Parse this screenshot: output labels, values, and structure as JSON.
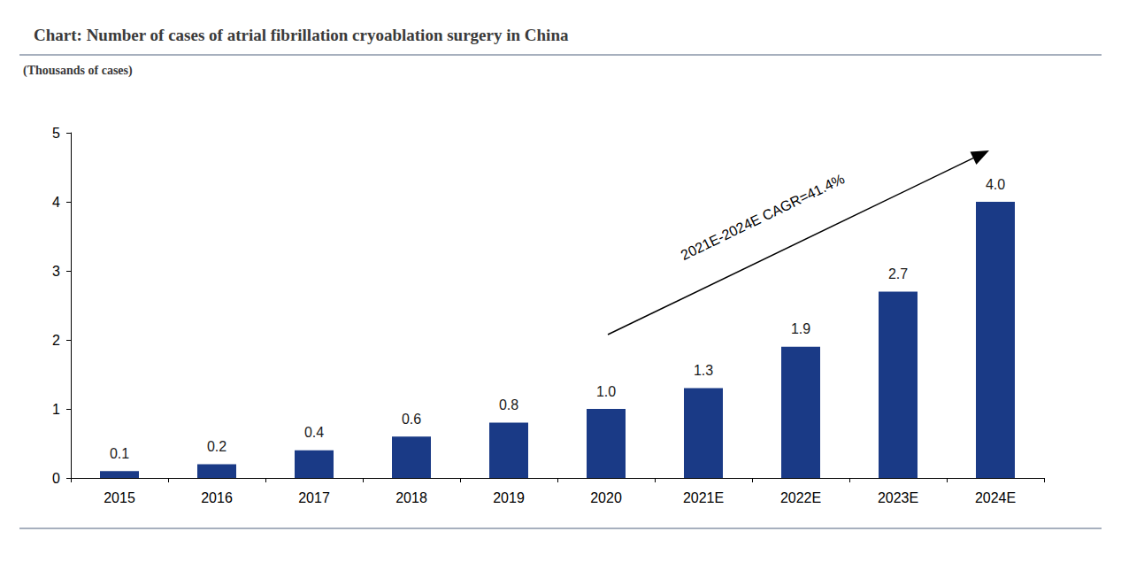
{
  "chart_data": {
    "type": "bar",
    "title": "Chart: Number of cases of atrial fibrillation cryoablation surgery in China",
    "subtitle": "(Thousands of cases)",
    "categories": [
      "2015",
      "2016",
      "2017",
      "2018",
      "2019",
      "2020",
      "2021E",
      "2022E",
      "2023E",
      "2024E"
    ],
    "values": [
      0.1,
      0.2,
      0.4,
      0.6,
      0.8,
      1.0,
      1.3,
      1.9,
      2.7,
      4.0
    ],
    "value_labels": [
      "0.1",
      "0.2",
      "0.4",
      "0.6",
      "0.8",
      "1.0",
      "1.3",
      "1.9",
      "2.7",
      "4.0"
    ],
    "color": "#1a3a86",
    "ylim": [
      0,
      5
    ],
    "yticks": [
      0,
      1,
      2,
      3,
      4,
      5
    ],
    "grid": false,
    "data_labels": true,
    "annotations": [
      "2021E-2024E CAGR=41.4%"
    ]
  }
}
